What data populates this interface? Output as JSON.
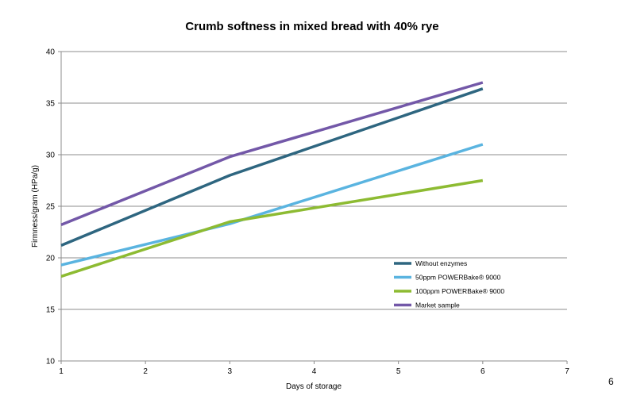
{
  "chart_data": {
    "type": "line",
    "title": "Crumb softness in mixed bread with 40% rye",
    "xlabel": "Days of storage",
    "ylabel": "Firmness/gram (HPa/g)",
    "xlim": [
      1,
      7
    ],
    "ylim": [
      10,
      40
    ],
    "xticks": [
      1,
      2,
      3,
      4,
      5,
      6,
      7
    ],
    "yticks": [
      10,
      15,
      20,
      25,
      30,
      35,
      40
    ],
    "grid": "horizontal",
    "legend_position": "bottom-right",
    "series": [
      {
        "name": "Without enzymes",
        "color": "#2e6680",
        "points": [
          [
            1,
            21.2
          ],
          [
            3,
            28.0
          ],
          [
            6,
            36.4
          ]
        ]
      },
      {
        "name": "50ppm POWERBake® 9000",
        "color": "#5ab4e0",
        "points": [
          [
            1,
            19.3
          ],
          [
            3,
            23.3
          ],
          [
            6,
            31.0
          ]
        ]
      },
      {
        "name": "100ppm POWERBake® 9000",
        "color": "#8dbb32",
        "points": [
          [
            1,
            18.2
          ],
          [
            3,
            23.5
          ],
          [
            6,
            27.5
          ]
        ]
      },
      {
        "name": "Market sample",
        "color": "#7358a8",
        "points": [
          [
            1,
            23.2
          ],
          [
            3,
            29.8
          ],
          [
            6,
            37.0
          ]
        ]
      }
    ]
  },
  "page_number": "6"
}
